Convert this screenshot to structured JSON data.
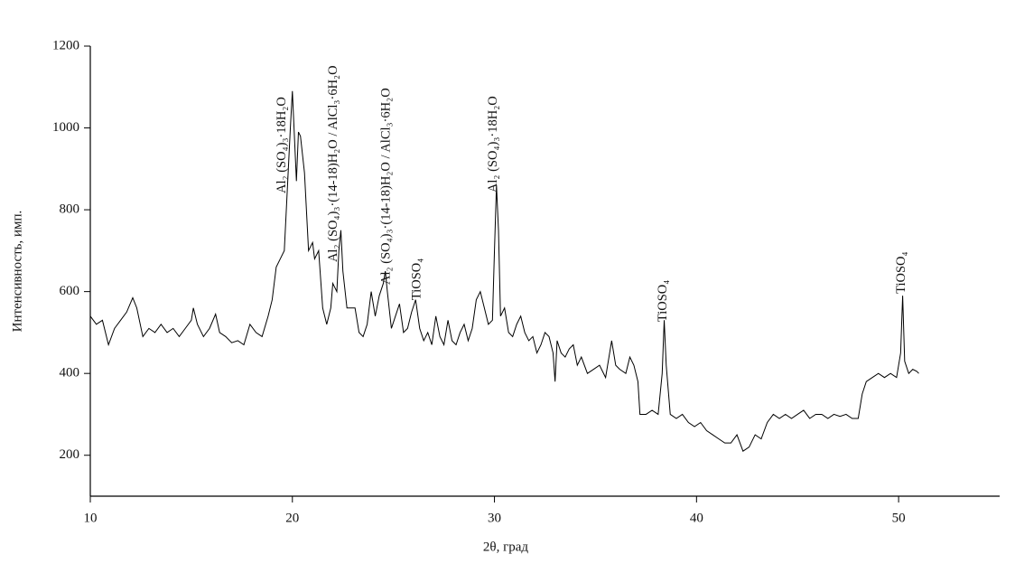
{
  "chart_data": {
    "type": "line",
    "x_label": "2θ, град",
    "y_label": "Интенсивность, имп.",
    "color": "#000000",
    "xlim": [
      10,
      55
    ],
    "ylim": [
      100,
      1200
    ],
    "xticks": [
      10,
      20,
      30,
      40,
      50
    ],
    "yticks": [
      200,
      400,
      600,
      800,
      1000,
      1200
    ],
    "annotations": [
      {
        "text": "Al₂ (SO₄)₃·18H₂O",
        "x": 19.5,
        "y": 840
      },
      {
        "text": "Al₂ (SO₄)₃·(14-18)H₂O / AlCl₃·6H₂O",
        "x": 22.06,
        "y": 672
      },
      {
        "text": "Al₂ (SO₄)₃·(14-18)H₂O / AlCl₃·6H₂O",
        "x": 24.66,
        "y": 617
      },
      {
        "text": "TiOSO₄",
        "x": 26.18,
        "y": 579
      },
      {
        "text": "Al₂ (SO₄)₃·18H₂O",
        "x": 29.97,
        "y": 842
      },
      {
        "text": "TiOSO₄",
        "x": 38.37,
        "y": 526
      },
      {
        "text": "TiOSO₄",
        "x": 50.17,
        "y": 595
      }
    ],
    "x": [
      10.0,
      10.3,
      10.6,
      10.9,
      11.2,
      11.5,
      11.8,
      12.1,
      12.3,
      12.6,
      12.9,
      13.2,
      13.5,
      13.8,
      14.1,
      14.4,
      14.7,
      15.0,
      15.1,
      15.3,
      15.6,
      15.9,
      16.2,
      16.4,
      16.7,
      17.0,
      17.3,
      17.6,
      17.9,
      18.2,
      18.5,
      18.8,
      19.0,
      19.2,
      19.4,
      19.6,
      19.8,
      19.9,
      20.0,
      20.1,
      20.2,
      20.3,
      20.4,
      20.6,
      20.8,
      21.0,
      21.1,
      21.3,
      21.5,
      21.7,
      21.9,
      22.0,
      22.2,
      22.3,
      22.4,
      22.5,
      22.7,
      22.9,
      23.1,
      23.3,
      23.5,
      23.7,
      23.9,
      24.1,
      24.3,
      24.5,
      24.6,
      24.7,
      24.9,
      25.1,
      25.3,
      25.5,
      25.7,
      25.9,
      26.1,
      26.3,
      26.5,
      26.7,
      26.9,
      27.1,
      27.3,
      27.5,
      27.7,
      27.9,
      28.1,
      28.3,
      28.5,
      28.7,
      28.9,
      29.1,
      29.3,
      29.5,
      29.7,
      29.9,
      30.0,
      30.1,
      30.2,
      30.3,
      30.5,
      30.7,
      30.9,
      31.1,
      31.3,
      31.5,
      31.7,
      31.9,
      32.1,
      32.3,
      32.5,
      32.7,
      32.9,
      33.0,
      33.1,
      33.3,
      33.5,
      33.7,
      33.9,
      34.1,
      34.3,
      34.6,
      34.9,
      35.2,
      35.5,
      35.7,
      35.8,
      36.0,
      36.2,
      36.5,
      36.7,
      36.9,
      37.1,
      37.2,
      37.5,
      37.8,
      38.1,
      38.3,
      38.4,
      38.5,
      38.7,
      39.0,
      39.3,
      39.6,
      39.9,
      40.2,
      40.5,
      40.8,
      41.1,
      41.4,
      41.7,
      42.0,
      42.3,
      42.6,
      42.9,
      43.2,
      43.5,
      43.8,
      44.1,
      44.4,
      44.7,
      45.0,
      45.3,
      45.6,
      45.9,
      46.2,
      46.5,
      46.8,
      47.1,
      47.4,
      47.7,
      48.0,
      48.2,
      48.4,
      48.7,
      49.0,
      49.3,
      49.6,
      49.9,
      50.1,
      50.2,
      50.3,
      50.5,
      50.7,
      50.9,
      51.0
    ],
    "values": [
      540,
      520,
      530,
      470,
      510,
      530,
      550,
      585,
      560,
      490,
      510,
      500,
      520,
      500,
      510,
      490,
      510,
      530,
      560,
      520,
      490,
      510,
      545,
      500,
      490,
      475,
      480,
      470,
      520,
      500,
      490,
      540,
      580,
      660,
      680,
      700,
      900,
      1000,
      1090,
      980,
      870,
      990,
      980,
      890,
      700,
      720,
      680,
      700,
      560,
      520,
      560,
      620,
      600,
      700,
      750,
      650,
      560,
      560,
      560,
      500,
      490,
      520,
      600,
      540,
      590,
      620,
      650,
      600,
      510,
      540,
      570,
      500,
      510,
      550,
      580,
      510,
      480,
      500,
      470,
      540,
      490,
      470,
      530,
      480,
      470,
      500,
      520,
      480,
      510,
      580,
      600,
      560,
      520,
      530,
      700,
      860,
      750,
      540,
      560,
      500,
      490,
      520,
      540,
      500,
      480,
      490,
      450,
      470,
      500,
      490,
      450,
      380,
      480,
      450,
      440,
      460,
      470,
      420,
      440,
      400,
      410,
      420,
      390,
      450,
      480,
      420,
      410,
      400,
      440,
      420,
      380,
      300,
      300,
      310,
      300,
      400,
      530,
      420,
      300,
      290,
      300,
      280,
      270,
      280,
      260,
      250,
      240,
      230,
      230,
      250,
      210,
      220,
      250,
      240,
      280,
      300,
      290,
      300,
      290,
      300,
      310,
      290,
      300,
      300,
      290,
      300,
      295,
      300,
      290,
      290,
      350,
      380,
      390,
      400,
      390,
      400,
      390,
      450,
      590,
      430,
      400,
      410,
      405,
      400
    ]
  }
}
